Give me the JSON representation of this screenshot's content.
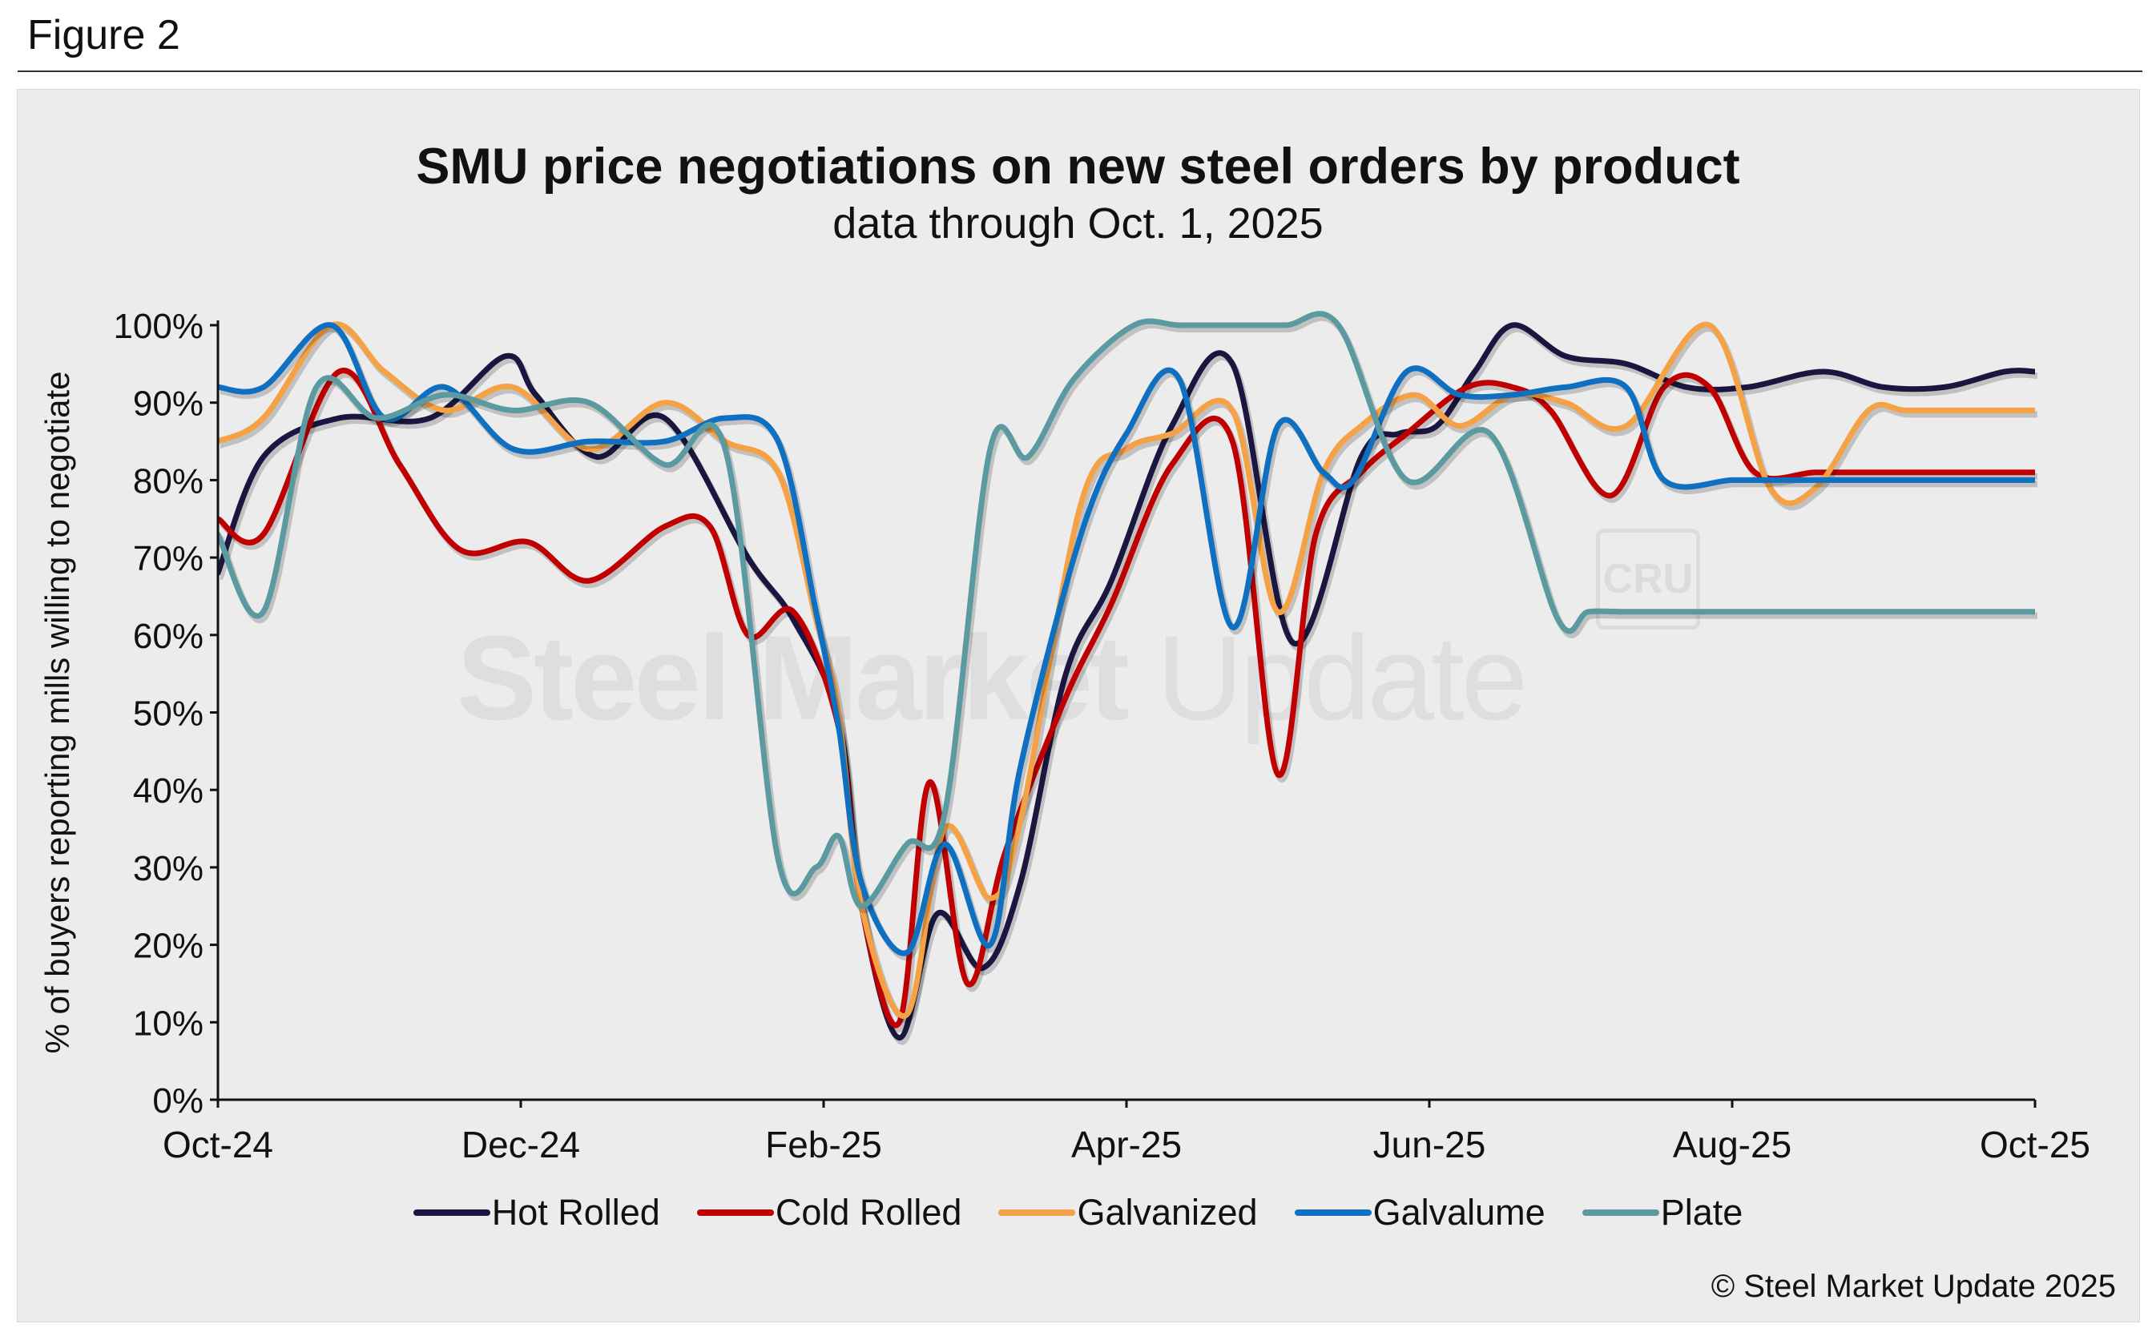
{
  "figure_label": "Figure 2",
  "watermark": {
    "bold": "Steel Market",
    "light": "Update",
    "logo": "CRU"
  },
  "copyright": "© Steel Market Update 2025",
  "colors": {
    "hot_rolled": "#1b1640",
    "cold_rolled": "#c00000",
    "galvanized": "#f5a246",
    "galvalume": "#0f6fc0",
    "plate": "#5b9aa0"
  },
  "chart_data": {
    "type": "line",
    "title": "SMU price negotiations on new steel orders by product",
    "subtitle": "data through Oct. 1, 2025",
    "xlabel": "",
    "ylabel": "% of buyers reporting mills willing to negotiate",
    "ylim": [
      0,
      100
    ],
    "yticks": [
      "0%",
      "10%",
      "20%",
      "30%",
      "40%",
      "50%",
      "60%",
      "70%",
      "80%",
      "90%",
      "100%"
    ],
    "xlim": [
      0,
      12
    ],
    "xticks": [
      {
        "label": "Oct-24",
        "x": 0
      },
      {
        "label": "Dec-24",
        "x": 2
      },
      {
        "label": "Feb-25",
        "x": 4
      },
      {
        "label": "Apr-25",
        "x": 6
      },
      {
        "label": "Jun-25",
        "x": 8
      },
      {
        "label": "Aug-25",
        "x": 10
      },
      {
        "label": "Oct-25",
        "x": 12
      }
    ],
    "legend_position": "bottom",
    "series": [
      {
        "name": "Hot Rolled",
        "color": "#1b1640",
        "x": [
          0,
          0.3,
          0.8,
          1.4,
          1.9,
          2.1,
          2.5,
          2.95,
          3.5,
          3.8,
          4.1,
          4.25,
          4.5,
          4.75,
          5.05,
          5.3,
          5.6,
          5.9,
          6.3,
          6.7,
          7.1,
          7.55,
          7.8,
          8.05,
          8.3,
          8.55,
          8.9,
          9.3,
          9.7,
          10.1,
          10.6,
          11.0,
          11.4,
          11.8,
          12.0
        ],
        "y": [
          68,
          83,
          88,
          88,
          96,
          91,
          83,
          88,
          70,
          62,
          49,
          25,
          8,
          24,
          17,
          28,
          55,
          67,
          87,
          95,
          59,
          83,
          86,
          87,
          94,
          100,
          96,
          95,
          92,
          92,
          94,
          92,
          92,
          94,
          94
        ]
      },
      {
        "name": "Cold Rolled",
        "color": "#c00000",
        "x": [
          0,
          0.3,
          0.8,
          1.2,
          1.6,
          2.05,
          2.45,
          2.95,
          3.25,
          3.5,
          3.8,
          4.1,
          4.25,
          4.5,
          4.7,
          4.95,
          5.2,
          5.6,
          5.9,
          6.3,
          6.7,
          7.0,
          7.25,
          7.55,
          7.85,
          8.25,
          8.55,
          8.8,
          9.2,
          9.55,
          9.85,
          10.15,
          10.55,
          10.9,
          11.25,
          11.6,
          12.0
        ],
        "y": [
          75,
          73,
          94,
          82,
          71,
          72,
          67,
          74,
          74,
          60,
          63,
          48,
          25,
          10,
          41,
          15,
          32,
          52,
          64,
          82,
          85,
          42,
          73,
          81,
          86,
          92,
          92,
          89,
          78,
          92,
          92,
          81,
          81,
          81,
          81,
          81,
          81
        ]
      },
      {
        "name": "Galvanized",
        "color": "#f5a246",
        "x": [
          0,
          0.3,
          0.75,
          1.1,
          1.5,
          1.95,
          2.45,
          2.95,
          3.35,
          3.7,
          3.95,
          4.1,
          4.25,
          4.55,
          4.8,
          5.1,
          5.3,
          5.7,
          6.0,
          6.3,
          6.7,
          7.0,
          7.3,
          7.55,
          7.9,
          8.2,
          8.55,
          8.9,
          9.3,
          9.85,
          10.25,
          10.55,
          10.9,
          11.15,
          11.55,
          12.0
        ],
        "y": [
          85,
          88,
          100,
          94,
          89,
          92,
          84,
          90,
          85,
          81,
          62,
          50,
          25,
          11,
          35,
          26,
          36,
          77,
          84,
          86,
          89,
          63,
          81,
          87,
          91,
          87,
          91,
          90,
          87,
          100,
          79,
          79,
          89,
          89,
          89,
          89
        ]
      },
      {
        "name": "Galvalume",
        "color": "#0f6fc0",
        "x": [
          0,
          0.3,
          0.75,
          1.1,
          1.5,
          1.95,
          2.45,
          2.95,
          3.35,
          3.7,
          3.95,
          4.1,
          4.25,
          4.55,
          4.8,
          5.1,
          5.3,
          5.7,
          6.0,
          6.35,
          6.7,
          7.0,
          7.3,
          7.5,
          7.85,
          8.2,
          8.55,
          8.9,
          9.3,
          9.55,
          10.0,
          10.3,
          10.65,
          11.0,
          11.3,
          11.6,
          12.0
        ],
        "y": [
          92,
          92,
          100,
          88,
          92,
          84,
          85,
          85,
          88,
          85,
          63,
          48,
          28,
          19,
          33,
          20,
          43,
          73,
          86,
          93,
          61,
          87,
          81,
          80,
          94,
          91,
          91,
          92,
          92,
          80,
          80,
          80,
          80,
          80,
          80,
          80,
          80
        ]
      },
      {
        "name": "Plate",
        "color": "#5b9aa0",
        "x": [
          0,
          0.3,
          0.65,
          1.05,
          1.5,
          1.95,
          2.45,
          2.95,
          3.35,
          3.7,
          3.95,
          4.1,
          4.25,
          4.55,
          4.8,
          5.1,
          5.35,
          5.65,
          6.05,
          6.35,
          6.7,
          7.05,
          7.4,
          7.85,
          8.4,
          8.85,
          9.05,
          9.3,
          9.75,
          10.05,
          10.4,
          10.75,
          11.1,
          11.45,
          11.75,
          12.0
        ],
        "y": [
          73,
          63,
          92,
          88,
          91,
          89,
          90,
          82,
          84,
          31,
          30,
          34,
          25,
          33,
          37,
          84,
          83,
          93,
          100,
          100,
          100,
          100,
          100,
          80,
          86,
          62,
          63,
          63,
          63,
          63,
          63,
          63,
          63,
          63,
          63,
          63
        ]
      }
    ]
  }
}
